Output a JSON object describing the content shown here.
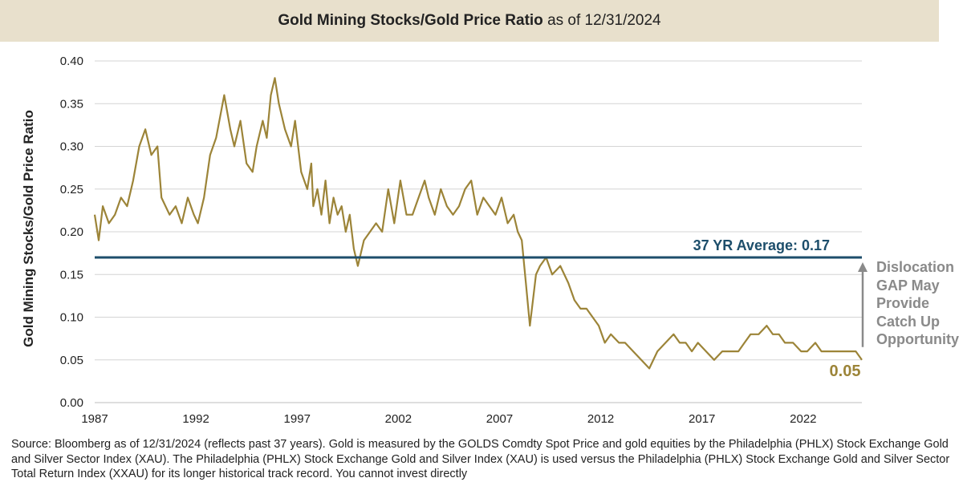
{
  "header": {
    "title_bold": "Gold Mining Stocks/Gold Price Ratio",
    "title_rest": "as of 12/31/2024"
  },
  "chart_data": {
    "type": "line",
    "title": "Gold Mining Stocks/Gold Price Ratio as of 12/31/2024",
    "xlabel": "",
    "ylabel": "Gold Mining Stocks/Gold Price Ratio",
    "xlim": [
      1987,
      2024.9
    ],
    "ylim": [
      0,
      0.4
    ],
    "y_ticks": [
      "0.00",
      "0.05",
      "0.10",
      "0.15",
      "0.20",
      "0.25",
      "0.30",
      "0.35",
      "0.40"
    ],
    "x_ticks": [
      "1987",
      "1992",
      "1997",
      "2002",
      "2007",
      "2012",
      "2017",
      "2022"
    ],
    "grid": "horizontal",
    "series": [
      {
        "name": "Gold Mining Stocks/Gold Price Ratio",
        "color": "#9c8438",
        "x": [
          1987.0,
          1987.2,
          1987.4,
          1987.7,
          1988.0,
          1988.3,
          1988.6,
          1988.9,
          1989.2,
          1989.5,
          1989.8,
          1990.1,
          1990.3,
          1990.7,
          1991.0,
          1991.3,
          1991.6,
          1991.9,
          1992.1,
          1992.4,
          1992.7,
          1993.0,
          1993.4,
          1993.7,
          1993.9,
          1994.2,
          1994.5,
          1994.8,
          1995.0,
          1995.3,
          1995.5,
          1995.7,
          1995.9,
          1996.1,
          1996.4,
          1996.7,
          1996.9,
          1997.2,
          1997.5,
          1997.7,
          1997.8,
          1998.0,
          1998.2,
          1998.4,
          1998.6,
          1998.8,
          1999.0,
          1999.2,
          1999.4,
          1999.6,
          1999.8,
          2000.0,
          2000.3,
          2000.6,
          2000.9,
          2001.2,
          2001.5,
          2001.8,
          2002.1,
          2002.4,
          2002.7,
          2003.0,
          2003.3,
          2003.5,
          2003.8,
          2004.1,
          2004.4,
          2004.7,
          2005.0,
          2005.3,
          2005.6,
          2005.9,
          2006.2,
          2006.5,
          2006.8,
          2007.1,
          2007.4,
          2007.7,
          2007.9,
          2008.1,
          2008.3,
          2008.5,
          2008.7,
          2008.8,
          2009.0,
          2009.3,
          2009.6,
          2010.0,
          2010.4,
          2010.7,
          2011.0,
          2011.3,
          2011.6,
          2011.9,
          2012.2,
          2012.5,
          2012.9,
          2013.2,
          2013.6,
          2014.0,
          2014.4,
          2014.8,
          2015.2,
          2015.6,
          2015.9,
          2016.2,
          2016.5,
          2016.8,
          2017.2,
          2017.6,
          2018.0,
          2018.4,
          2018.8,
          2019.1,
          2019.4,
          2019.8,
          2020.2,
          2020.5,
          2020.8,
          2021.1,
          2021.5,
          2021.9,
          2022.2,
          2022.6,
          2022.9,
          2023.3,
          2023.7,
          2024.0,
          2024.3,
          2024.6,
          2024.9
        ],
        "y": [
          0.22,
          0.19,
          0.23,
          0.21,
          0.22,
          0.24,
          0.23,
          0.26,
          0.3,
          0.32,
          0.29,
          0.3,
          0.24,
          0.22,
          0.23,
          0.21,
          0.24,
          0.22,
          0.21,
          0.24,
          0.29,
          0.31,
          0.36,
          0.32,
          0.3,
          0.33,
          0.28,
          0.27,
          0.3,
          0.33,
          0.31,
          0.36,
          0.38,
          0.35,
          0.32,
          0.3,
          0.33,
          0.27,
          0.25,
          0.28,
          0.23,
          0.25,
          0.22,
          0.26,
          0.21,
          0.24,
          0.22,
          0.23,
          0.2,
          0.22,
          0.18,
          0.16,
          0.19,
          0.2,
          0.21,
          0.2,
          0.25,
          0.21,
          0.26,
          0.22,
          0.22,
          0.24,
          0.26,
          0.24,
          0.22,
          0.25,
          0.23,
          0.22,
          0.23,
          0.25,
          0.26,
          0.22,
          0.24,
          0.23,
          0.22,
          0.24,
          0.21,
          0.22,
          0.2,
          0.19,
          0.14,
          0.09,
          0.13,
          0.15,
          0.16,
          0.17,
          0.15,
          0.16,
          0.14,
          0.12,
          0.11,
          0.11,
          0.1,
          0.09,
          0.07,
          0.08,
          0.07,
          0.07,
          0.06,
          0.05,
          0.04,
          0.06,
          0.07,
          0.08,
          0.07,
          0.07,
          0.06,
          0.07,
          0.06,
          0.05,
          0.06,
          0.06,
          0.06,
          0.07,
          0.08,
          0.08,
          0.09,
          0.08,
          0.08,
          0.07,
          0.07,
          0.06,
          0.06,
          0.07,
          0.06,
          0.06,
          0.06,
          0.06,
          0.06,
          0.06,
          0.05
        ]
      }
    ],
    "reference_line": {
      "value": 0.17,
      "label": "37 YR Average: 0.17",
      "color": "#1d4e6b"
    },
    "annotations": {
      "end_value_label": "0.05",
      "dislocation_lines": [
        "Dislocation",
        "GAP May",
        "Provide",
        "Catch Up",
        "Opportunity"
      ],
      "arrow_color": "#8a8a8a"
    }
  },
  "source_note": "Source: Bloomberg as of 12/31/2024 (reflects past 37 years). Gold is measured by the GOLDS Comdty Spot Price and gold equities by the Philadelphia (PHLX) Stock Exchange Gold and Silver Sector Index (XAU). The Philadelphia (PHLX) Stock Exchange Gold and Silver Index (XAU) is used versus the Philadelphia (PHLX) Stock Exchange Gold and Silver Sector Total Return Index (XXAU) for its longer historical track record. You cannot invest directly"
}
